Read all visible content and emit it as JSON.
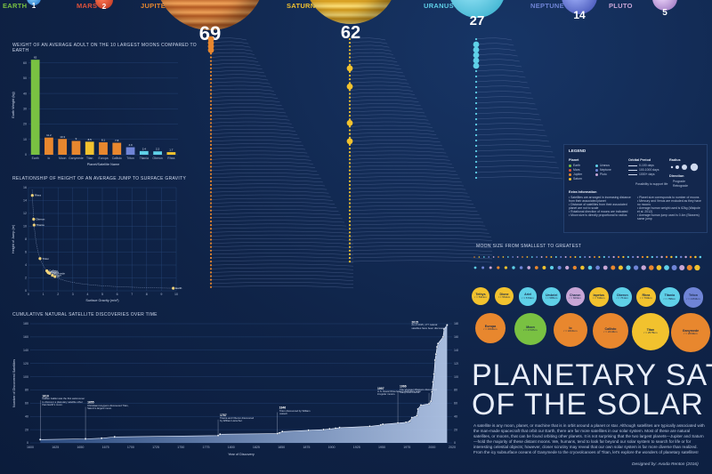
{
  "poster": {
    "title_line1": "PLANETARY SATELLITES",
    "title_line2": "OF THE SOLAR SYSTEM",
    "intro": "A satellite is any moon, planet, or machine that is in orbit around a planet or star. Although satellites are typically associated with the man-made spacecraft that orbit our Earth, there are far more satellites in our solar system. Most of these are natural satellites, or moons, that can be found orbiting other planets. It is not surprising that the two largest planets—Jupiter and Saturn—hold the majority of these distant moons. We, humans, tend to look far beyond our solar system to search for life or for interesting celestial objects; however, closer scrutiny may reveal that our own solar system is far more diverse than realized. From the icy subsurface oceans of Ganymede to the cryovolcanoes of Titan, let's explore the wonders of planetary satellites!",
    "credit": "Designed by: Avoda Renton (2016)"
  },
  "planets": [
    {
      "name": "EARTH",
      "count": "1",
      "color": "#79c142"
    },
    {
      "name": "MARS",
      "count": "2",
      "color": "#e0523a"
    },
    {
      "name": "JUPITER",
      "count": "69",
      "color": "#e8872e"
    },
    {
      "name": "SATURN",
      "count": "62",
      "color": "#f2c22e"
    },
    {
      "name": "URANUS",
      "count": "27",
      "color": "#5fd0e8"
    },
    {
      "name": "NEPTUNE",
      "count": "14",
      "color": "#6f84d6"
    },
    {
      "name": "PLUTO",
      "count": "5",
      "color": "#c8a6d6"
    }
  ],
  "legend": {
    "title": "LEGEND",
    "planet_heading": "Planet",
    "planet_items": [
      "Earth",
      "Mars",
      "Jupiter",
      "Saturn",
      "Uranus",
      "Neptune",
      "Pluto"
    ],
    "orbital_heading": "Orbital Period",
    "orbital_items": [
      "0-100 days",
      "100-1000 days",
      "1000+ days"
    ],
    "possibility_text": "Possibility to support life",
    "radius_heading": "Radius",
    "direction_heading": "Direction",
    "direction_items": [
      "Prograde",
      "Retrograde"
    ],
    "extra_heading": "Extra Information",
    "extra_items": [
      "Satellites are arranged in increasing distance from their associated planet",
      "Distance of satellites from their associated planet are not to scale",
      "Rotational direction of moons are indicated",
      "Moon size is directly proportional to radius"
    ],
    "extra_items_right": [
      "Planet size corresponds to number of moons",
      "Mercury and Venus are excluded as they have no moons",
      "Average human weight used is 62kg (Walpole et al. 2012)",
      "Average human jump used is 0.4m (Stowers) same jump"
    ]
  },
  "moon_size": {
    "title": "MOON SIZE FROM SMALLEST TO GREATEST",
    "row1": [
      {
        "name": "Tethys",
        "d": "r = 531km"
      },
      {
        "name": "Dione",
        "d": "r = 561km"
      },
      {
        "name": "Ariel",
        "d": "r = 579km"
      },
      {
        "name": "Umbriel",
        "d": "r = 585km"
      },
      {
        "name": "Charon",
        "d": "r = 606km"
      },
      {
        "name": "Iapetus",
        "d": "r = 734km"
      },
      {
        "name": "Oberon",
        "d": "r = 761km"
      },
      {
        "name": "Rhea",
        "d": "r = 764km"
      },
      {
        "name": "Titania",
        "d": "r = 788km"
      },
      {
        "name": "Triton",
        "d": "r = 1353km"
      }
    ],
    "row2": [
      {
        "name": "Europa",
        "d": "r = 1561km"
      },
      {
        "name": "Moon",
        "d": "r = 1737km"
      },
      {
        "name": "Io",
        "d": "r = 1821km"
      },
      {
        "name": "Callisto",
        "d": "r = 2410km"
      },
      {
        "name": "Titan",
        "d": "r = 2575km"
      },
      {
        "name": "Ganymede",
        "d": "r = 2634km"
      }
    ]
  },
  "colors": {
    "background": "#0f2347",
    "earth": "#79c142",
    "mars": "#e0523a",
    "jupiter": "#e8872e",
    "saturn": "#f2c22e",
    "uranus": "#5fd0e8",
    "neptune": "#6f84d6",
    "pluto": "#c8a6d6"
  },
  "chart_data": [
    {
      "type": "bar",
      "title": "WEIGHT OF AN AVERAGE ADULT ON THE 10 LARGEST MOONS COMPARED TO EARTH",
      "xlabel": "Planet/Satellite Name",
      "ylabel": "Earth Weight (kg)",
      "categories": [
        "Earth",
        "Io",
        "Moon",
        "Ganymede",
        "Titan",
        "Europa",
        "Callisto",
        "Triton",
        "Titania",
        "Oberon",
        "Rhea"
      ],
      "values": [
        62,
        11.2,
        10.3,
        9.0,
        8.5,
        8.1,
        7.8,
        4.9,
        2.4,
        2.2,
        1.7
      ],
      "ylim": [
        0,
        65
      ],
      "yticks": [
        0,
        10,
        20,
        30,
        40,
        50,
        60
      ],
      "grid": true
    },
    {
      "type": "scatter",
      "title": "RELATIONSHIP OF HEIGHT OF AN AVERAGE JUMP TO SURFACE GRAVITY",
      "xlabel": "Surface Gravity (m/s²)",
      "ylabel": "Height of Jump (m)",
      "xlim": [
        0,
        10
      ],
      "ylim": [
        0,
        16
      ],
      "xticks": [
        0,
        1,
        2,
        3,
        4,
        5,
        6,
        7,
        8,
        9,
        10
      ],
      "yticks": [
        0,
        2,
        4,
        6,
        8,
        10,
        12,
        14,
        16
      ],
      "points": [
        {
          "label": "Rhea",
          "x": 0.26,
          "y": 14.8
        },
        {
          "label": "Oberon",
          "x": 0.35,
          "y": 11.1
        },
        {
          "label": "Titania",
          "x": 0.38,
          "y": 10.2
        },
        {
          "label": "Triton",
          "x": 0.78,
          "y": 5.0
        },
        {
          "label": "Callisto",
          "x": 1.24,
          "y": 3.1
        },
        {
          "label": "Europa",
          "x": 1.31,
          "y": 2.9
        },
        {
          "label": "Ganymede",
          "x": 1.43,
          "y": 2.7
        },
        {
          "label": "Titan",
          "x": 1.35,
          "y": 2.8
        },
        {
          "label": "Moon",
          "x": 1.62,
          "y": 2.4
        },
        {
          "label": "Io",
          "x": 1.79,
          "y": 2.2
        },
        {
          "label": "Earth",
          "x": 9.8,
          "y": 0.4
        }
      ],
      "grid": true
    },
    {
      "type": "area",
      "title": "CUMULATIVE NATURAL SATELLITE DISCOVERIES OVER TIME",
      "xlabel": "Year of Discovery",
      "ylabel": "Number of Discovered Satellites",
      "x": [
        1610,
        1655,
        1671,
        1684,
        1787,
        1789,
        1846,
        1848,
        1851,
        1877,
        1892,
        1898,
        1904,
        1908,
        1938,
        1949,
        1951,
        1966,
        1974,
        1977,
        1978,
        1980,
        1985,
        1986,
        1989,
        1997,
        1999,
        2000,
        2001,
        2002,
        2003,
        2004,
        2005,
        2006,
        2011,
        2012,
        2015
      ],
      "y": [
        5,
        6,
        7,
        9,
        11,
        13,
        14,
        15,
        17,
        19,
        20,
        21,
        22,
        23,
        25,
        27,
        28,
        30,
        31,
        32,
        33,
        38,
        41,
        51,
        57,
        59,
        63,
        77,
        92,
        104,
        125,
        134,
        145,
        150,
        160,
        172,
        178
      ],
      "xlim": [
        1600,
        2020
      ],
      "ylim": [
        0,
        180
      ],
      "xticks": [
        1600,
        1625,
        1650,
        1675,
        1700,
        1725,
        1750,
        1775,
        1800,
        1825,
        1850,
        1875,
        1900,
        1925,
        1950,
        1975,
        2000,
        2020
      ],
      "yticks": [
        0,
        20,
        40,
        60,
        80,
        100,
        120,
        140,
        160,
        180
      ],
      "annotations": [
        {
          "year": "1610",
          "text": "Galileo Galilei was the first astronomer to discover a planetary satellite other than Earth's moon."
        },
        {
          "year": "1655",
          "text": "Christiaan Huygens discovered Titan, Saturn's largest moon."
        },
        {
          "year": "1787",
          "text": "Titania and Oberon discovered by William Herschel."
        },
        {
          "year": "1846",
          "text": "Triton discovered by William Lassell."
        },
        {
          "year": "1966",
          "text": "The Voyager Missions discovered many new moons."
        },
        {
          "year": "1997",
          "text": "U.S. Naval Observatory discovers outer irregular moons."
        },
        {
          "year": "2015",
          "text": "As of 2015, 177 natural satellites have been discovered."
        }
      ],
      "grid": true
    }
  ]
}
